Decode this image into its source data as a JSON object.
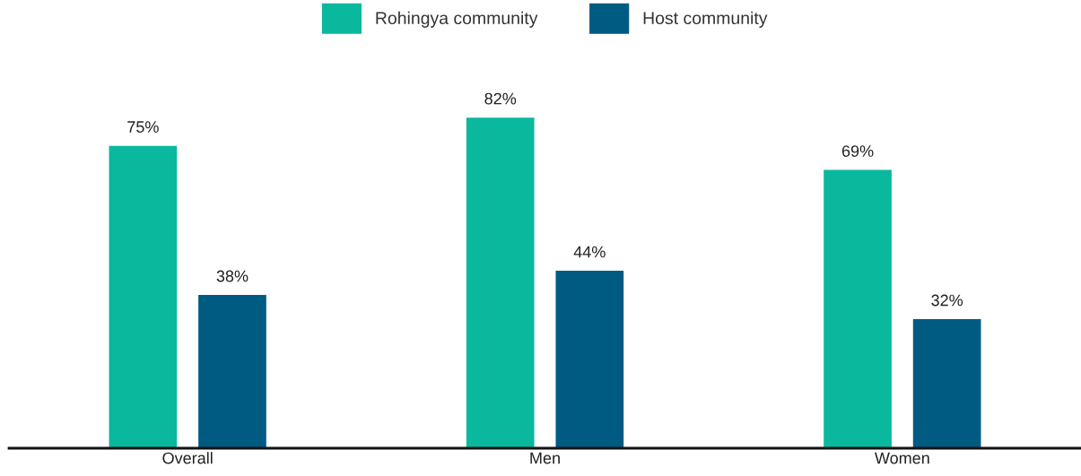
{
  "chart_data": {
    "type": "bar",
    "categories": [
      "Overall",
      "Men",
      "Women"
    ],
    "series": [
      {
        "name": "Rohingya community",
        "color": "#0ab89e",
        "values": [
          75,
          82,
          69
        ],
        "value_labels": [
          "75%",
          "82%",
          "69%"
        ]
      },
      {
        "name": "Host community",
        "color": "#005b82",
        "values": [
          38,
          44,
          32
        ],
        "value_labels": [
          "38%",
          "44%",
          "32%"
        ]
      }
    ],
    "legend": "top",
    "grid": false,
    "tick_labels": "x"
  }
}
